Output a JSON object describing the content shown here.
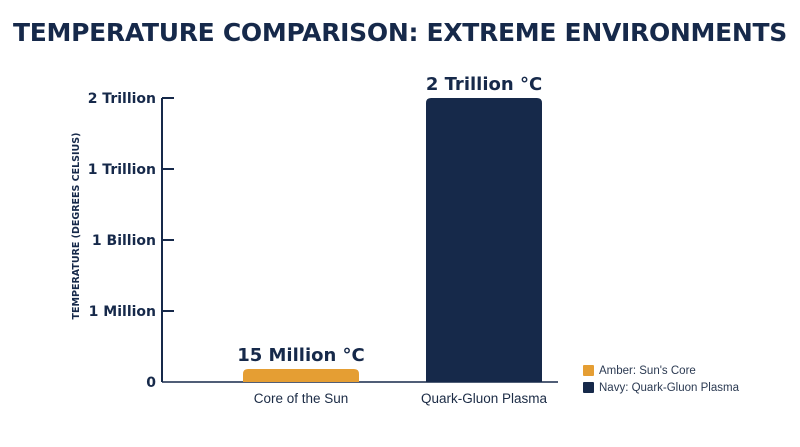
{
  "title": "TEMPERATURE COMPARISON: EXTREME ENVIRONMENTS",
  "colors": {
    "amber": "#e59e33",
    "navy": "#16294a",
    "axis": "#16294a"
  },
  "chart_data": {
    "type": "bar",
    "title": "TEMPERATURE COMPARISON: EXTREME ENVIRONMENTS",
    "ylabel": "TEMPERATURE (DEGREES CELSIUS)",
    "xlabel": "",
    "y_scale": "log",
    "categories": [
      "Core of the Sun",
      "Quark-Gluon Plasma"
    ],
    "values": [
      15000000,
      2000000000000
    ],
    "data_labels": [
      "15 Million °C",
      "2 Trillion °C"
    ],
    "bar_colors": [
      "#e59e33",
      "#16294a"
    ],
    "y_ticks": [
      {
        "value": 0,
        "label": "0"
      },
      {
        "value": 1000000,
        "label": "1 Million"
      },
      {
        "value": 1000000000,
        "label": "1 Billion"
      },
      {
        "value": 1000000000000,
        "label": "1 Trillion"
      },
      {
        "value": 2000000000000,
        "label": "2 Trillion"
      }
    ],
    "legend": [
      {
        "label": "Amber: Sun's Core",
        "color": "#e59e33"
      },
      {
        "label": "Navy: Quark-Gluon Plasma",
        "color": "#16294a"
      }
    ],
    "legend_position": "bottom-right",
    "grid": false
  }
}
